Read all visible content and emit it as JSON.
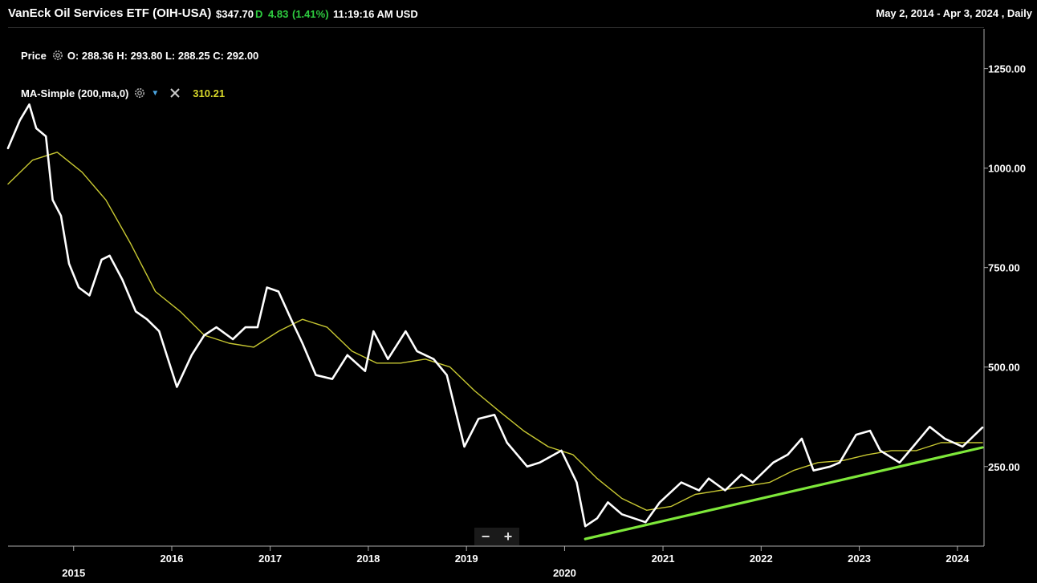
{
  "header": {
    "title": "VanEck Oil Services ETF (OIH-USA)",
    "price": "$347.70",
    "d_tag": "D",
    "change": "4.83",
    "change_pct": "(1.41%)",
    "time": "11:19:16 AM USD",
    "range": "May 2, 2014 - Apr 3, 2024 , Daily"
  },
  "legend": {
    "price_label": "Price",
    "ohlc": "O: 288.36  H: 293.80  L: 288.25  C: 292.00",
    "ma_label": "MA-Simple (200,ma,0)",
    "ma_value": "310.21"
  },
  "zoom": {
    "minus": "−",
    "plus": "+"
  },
  "colors": {
    "price": "#ffffff",
    "ma": "#c8c832",
    "trend": "#7ee83a",
    "background": "#000000"
  },
  "chart_data": {
    "type": "line",
    "ylim": [
      50,
      1350
    ],
    "xlim": [
      "2014-05-02",
      "2024-04-03"
    ],
    "yticks": [
      "250.00",
      "500.00",
      "750.00",
      "1000.00",
      "1250.00"
    ],
    "ytick_values": [
      250,
      500,
      750,
      1000,
      1250
    ],
    "xticks": [
      {
        "label": "2015",
        "date": "2015-01-01"
      },
      {
        "label": "2016",
        "date": "2016-01-01"
      },
      {
        "label": "2017",
        "date": "2017-01-01"
      },
      {
        "label": "2018",
        "date": "2018-01-01"
      },
      {
        "label": "2019",
        "date": "2019-01-01"
      },
      {
        "label": "2020",
        "date": "2020-01-01"
      },
      {
        "label": "2021",
        "date": "2021-01-01"
      },
      {
        "label": "2022",
        "date": "2022-01-01"
      },
      {
        "label": "2023",
        "date": "2023-01-01"
      },
      {
        "label": "2024",
        "date": "2024-01-01"
      }
    ],
    "series": [
      {
        "name": "Price",
        "points": [
          [
            "2014-05-02",
            1050
          ],
          [
            "2014-06-15",
            1120
          ],
          [
            "2014-07-20",
            1160
          ],
          [
            "2014-08-15",
            1100
          ],
          [
            "2014-09-20",
            1080
          ],
          [
            "2014-10-15",
            920
          ],
          [
            "2014-11-15",
            880
          ],
          [
            "2014-12-15",
            760
          ],
          [
            "2015-01-20",
            700
          ],
          [
            "2015-03-01",
            680
          ],
          [
            "2015-04-15",
            770
          ],
          [
            "2015-05-15",
            780
          ],
          [
            "2015-07-01",
            720
          ],
          [
            "2015-08-20",
            640
          ],
          [
            "2015-10-01",
            620
          ],
          [
            "2015-11-15",
            590
          ],
          [
            "2016-01-20",
            450
          ],
          [
            "2016-03-15",
            530
          ],
          [
            "2016-05-01",
            580
          ],
          [
            "2016-06-15",
            600
          ],
          [
            "2016-08-15",
            570
          ],
          [
            "2016-10-01",
            600
          ],
          [
            "2016-11-15",
            600
          ],
          [
            "2016-12-20",
            700
          ],
          [
            "2017-02-01",
            690
          ],
          [
            "2017-03-20",
            620
          ],
          [
            "2017-05-01",
            560
          ],
          [
            "2017-06-20",
            480
          ],
          [
            "2017-08-20",
            470
          ],
          [
            "2017-10-15",
            530
          ],
          [
            "2017-12-20",
            490
          ],
          [
            "2018-01-20",
            590
          ],
          [
            "2018-03-15",
            520
          ],
          [
            "2018-05-20",
            590
          ],
          [
            "2018-07-01",
            540
          ],
          [
            "2018-09-01",
            520
          ],
          [
            "2018-10-20",
            480
          ],
          [
            "2018-12-24",
            300
          ],
          [
            "2019-02-15",
            370
          ],
          [
            "2019-04-15",
            380
          ],
          [
            "2019-06-01",
            310
          ],
          [
            "2019-08-15",
            250
          ],
          [
            "2019-10-01",
            260
          ],
          [
            "2019-12-20",
            290
          ],
          [
            "2020-02-15",
            210
          ],
          [
            "2020-03-18",
            100
          ],
          [
            "2020-05-01",
            120
          ],
          [
            "2020-06-10",
            160
          ],
          [
            "2020-08-01",
            130
          ],
          [
            "2020-10-28",
            110
          ],
          [
            "2020-12-20",
            160
          ],
          [
            "2021-03-10",
            210
          ],
          [
            "2021-05-15",
            190
          ],
          [
            "2021-06-20",
            220
          ],
          [
            "2021-08-20",
            190
          ],
          [
            "2021-10-20",
            230
          ],
          [
            "2021-12-01",
            210
          ],
          [
            "2022-02-15",
            260
          ],
          [
            "2022-04-10",
            280
          ],
          [
            "2022-06-01",
            320
          ],
          [
            "2022-07-15",
            240
          ],
          [
            "2022-09-15",
            250
          ],
          [
            "2022-10-20",
            260
          ],
          [
            "2022-12-20",
            330
          ],
          [
            "2023-02-10",
            340
          ],
          [
            "2023-03-20",
            290
          ],
          [
            "2023-05-31",
            260
          ],
          [
            "2023-07-20",
            300
          ],
          [
            "2023-09-20",
            350
          ],
          [
            "2023-11-15",
            320
          ],
          [
            "2024-01-20",
            300
          ],
          [
            "2024-02-20",
            320
          ],
          [
            "2024-04-03",
            348
          ]
        ]
      },
      {
        "name": "MA-Simple (200,ma,0)",
        "points": [
          [
            "2014-05-02",
            960
          ],
          [
            "2014-08-01",
            1020
          ],
          [
            "2014-11-01",
            1040
          ],
          [
            "2015-02-01",
            990
          ],
          [
            "2015-05-01",
            920
          ],
          [
            "2015-08-01",
            810
          ],
          [
            "2015-11-01",
            690
          ],
          [
            "2016-02-01",
            640
          ],
          [
            "2016-05-01",
            580
          ],
          [
            "2016-08-01",
            560
          ],
          [
            "2016-11-01",
            550
          ],
          [
            "2017-02-01",
            590
          ],
          [
            "2017-05-01",
            620
          ],
          [
            "2017-08-01",
            600
          ],
          [
            "2017-11-01",
            540
          ],
          [
            "2018-02-01",
            510
          ],
          [
            "2018-05-01",
            510
          ],
          [
            "2018-08-01",
            520
          ],
          [
            "2018-11-01",
            500
          ],
          [
            "2019-02-01",
            440
          ],
          [
            "2019-05-01",
            390
          ],
          [
            "2019-08-01",
            340
          ],
          [
            "2019-11-01",
            300
          ],
          [
            "2020-02-01",
            280
          ],
          [
            "2020-05-01",
            220
          ],
          [
            "2020-08-01",
            170
          ],
          [
            "2020-11-01",
            140
          ],
          [
            "2021-02-01",
            150
          ],
          [
            "2021-05-01",
            180
          ],
          [
            "2021-08-01",
            190
          ],
          [
            "2021-11-01",
            200
          ],
          [
            "2022-02-01",
            210
          ],
          [
            "2022-05-01",
            240
          ],
          [
            "2022-08-01",
            260
          ],
          [
            "2022-11-01",
            265
          ],
          [
            "2023-02-01",
            280
          ],
          [
            "2023-05-01",
            290
          ],
          [
            "2023-08-01",
            290
          ],
          [
            "2023-11-01",
            310
          ],
          [
            "2024-02-01",
            310
          ],
          [
            "2024-04-03",
            310
          ]
        ]
      },
      {
        "name": "Trendline",
        "points": [
          [
            "2020-03-18",
            68
          ],
          [
            "2024-04-03",
            298
          ]
        ]
      }
    ]
  }
}
